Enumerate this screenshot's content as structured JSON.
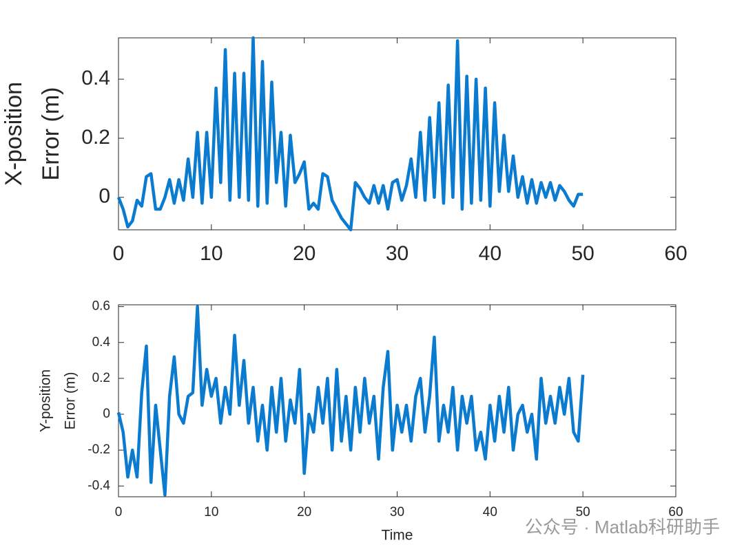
{
  "chart_data": [
    {
      "type": "line",
      "ylabel": [
        "X-position",
        "Error (m)"
      ],
      "xlim": [
        0,
        60
      ],
      "xticks": [
        0,
        10,
        20,
        30,
        40,
        50,
        60
      ],
      "ylim": [
        -0.11,
        0.54
      ],
      "yticks": [
        0,
        0.2,
        0.4
      ],
      "series": [
        {
          "color": "#0b7bd0",
          "x": [
            0,
            0.5,
            1,
            1.5,
            2,
            2.5,
            3,
            3.5,
            4,
            4.5,
            5,
            5.5,
            6,
            6.5,
            7,
            7.5,
            8,
            8.5,
            9,
            9.5,
            10,
            10.5,
            11,
            11.5,
            12,
            12.5,
            13,
            13.5,
            14,
            14.5,
            15,
            15.5,
            16,
            16.5,
            17,
            17.5,
            18,
            18.5,
            19,
            19.5,
            20,
            20.5,
            21,
            21.5,
            22,
            22.5,
            23,
            23.5,
            24,
            24.5,
            25,
            25.5,
            26,
            26.5,
            27,
            27.5,
            28,
            28.5,
            29,
            29.5,
            30,
            30.5,
            31,
            31.5,
            32,
            32.5,
            33,
            33.5,
            34,
            34.5,
            35,
            35.5,
            36,
            36.5,
            37,
            37.5,
            38,
            38.5,
            39,
            39.5,
            40,
            40.5,
            41,
            41.5,
            42,
            42.5,
            43,
            43.5,
            44,
            44.5,
            45,
            45.5,
            46,
            46.5,
            47,
            47.5,
            48,
            48.5,
            49,
            49.5,
            50
          ],
          "values": [
            0,
            -0.04,
            -0.1,
            -0.08,
            -0.01,
            -0.03,
            0.07,
            0.08,
            -0.04,
            -0.04,
            0,
            0.06,
            -0.02,
            0.06,
            -0.01,
            0.13,
            0,
            0.22,
            -0.02,
            0.22,
            0,
            0.37,
            0.05,
            0.5,
            -0.01,
            0.42,
            0,
            0.42,
            -0.01,
            0.54,
            -0.03,
            0.46,
            -0.02,
            0.39,
            0.05,
            0.22,
            -0.03,
            0.21,
            0.05,
            0.08,
            0.12,
            -0.04,
            -0.02,
            -0.04,
            0.08,
            0.07,
            -0.01,
            -0.04,
            -0.07,
            -0.09,
            -0.11,
            0.05,
            0.03,
            0,
            -0.02,
            0.04,
            -0.02,
            0.04,
            -0.04,
            0.05,
            0.06,
            -0.01,
            0.04,
            0.13,
            0,
            0.22,
            -0.01,
            0.27,
            0,
            0.32,
            -0.02,
            0.38,
            0,
            0.53,
            -0.04,
            0.41,
            -0.02,
            0.4,
            -0.01,
            0.37,
            -0.03,
            0.32,
            0.02,
            0.21,
            0.02,
            0.14,
            0,
            0.07,
            -0.02,
            0.06,
            -0.02,
            0.05,
            0,
            0.05,
            -0.01,
            0.04,
            0.02,
            -0.01,
            -0.03,
            0.01,
            0.01
          ]
        }
      ]
    },
    {
      "type": "line",
      "ylabel": [
        "Y-position",
        "Error (m)"
      ],
      "xlabel": "Time",
      "xlim": [
        0,
        60
      ],
      "xticks": [
        0,
        10,
        20,
        30,
        40,
        50,
        60
      ],
      "ylim": [
        -0.46,
        0.61
      ],
      "yticks": [
        -0.4,
        -0.2,
        0,
        0.2,
        0.4,
        0.6
      ],
      "series": [
        {
          "color": "#0b7bd0",
          "x": [
            0,
            0.5,
            1,
            1.5,
            2,
            2.5,
            3,
            3.5,
            4,
            4.5,
            5,
            5.5,
            6,
            6.5,
            7,
            7.5,
            8,
            8.5,
            9,
            9.5,
            10,
            10.5,
            11,
            11.5,
            12,
            12.5,
            13,
            13.5,
            14,
            14.5,
            15,
            15.5,
            16,
            16.5,
            17,
            17.5,
            18,
            18.5,
            19,
            19.5,
            20,
            20.5,
            21,
            21.5,
            22,
            22.5,
            23,
            23.5,
            24,
            24.5,
            25,
            25.5,
            26,
            26.5,
            27,
            27.5,
            28,
            28.5,
            29,
            29.5,
            30,
            30.5,
            31,
            31.5,
            32,
            32.5,
            33,
            33.5,
            34,
            34.5,
            35,
            35.5,
            36,
            36.5,
            37,
            37.5,
            38,
            38.5,
            39,
            39.5,
            40,
            40.5,
            41,
            41.5,
            42,
            42.5,
            43,
            43.5,
            44,
            44.5,
            45,
            45.5,
            46,
            46.5,
            47,
            47.5,
            48,
            48.5,
            49,
            49.5,
            50
          ],
          "values": [
            0.01,
            -0.1,
            -0.35,
            -0.2,
            -0.35,
            0.12,
            0.38,
            -0.38,
            0.05,
            -0.2,
            -0.45,
            0.1,
            0.32,
            0,
            -0.05,
            0.1,
            0.12,
            0.6,
            0.05,
            0.25,
            0.1,
            0.2,
            -0.05,
            0.15,
            0,
            0.44,
            0.05,
            0.3,
            -0.05,
            0.15,
            -0.15,
            0.05,
            -0.2,
            0.15,
            -0.1,
            0.2,
            -0.15,
            0.08,
            -0.05,
            0.25,
            -0.33,
            0,
            -0.1,
            0.15,
            -0.05,
            0.2,
            -0.2,
            0.25,
            -0.15,
            0.1,
            -0.2,
            0.15,
            -0.1,
            0.2,
            -0.05,
            0.1,
            -0.25,
            0.15,
            0.35,
            -0.2,
            0.05,
            -0.1,
            0.05,
            -0.15,
            0.1,
            0.2,
            -0.1,
            0.1,
            0.43,
            -0.15,
            0.05,
            -0.1,
            0.15,
            -0.2,
            0.1,
            -0.05,
            0.1,
            -0.2,
            -0.1,
            -0.25,
            0.05,
            -0.15,
            0.1,
            -0.1,
            0.15,
            -0.2,
            0,
            0.05,
            -0.1,
            0,
            -0.25,
            0.2,
            -0.05,
            0.1,
            -0.05,
            0.15,
            0,
            0.2,
            -0.1,
            -0.15,
            0.22
          ]
        }
      ]
    }
  ],
  "watermark": "公众号 · Matlab科研助手"
}
